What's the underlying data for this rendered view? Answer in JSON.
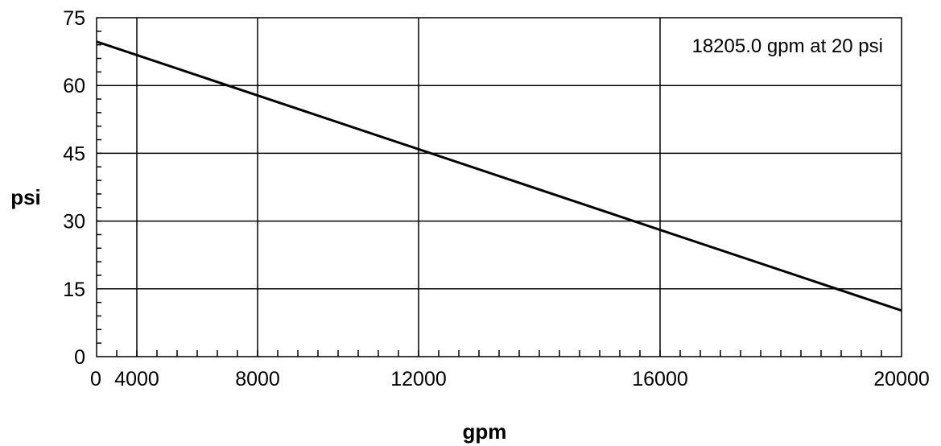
{
  "chart_data": {
    "type": "line",
    "xlabel": "gpm",
    "ylabel": "psi",
    "xlim": [
      0,
      20000
    ],
    "ylim": [
      0,
      75
    ],
    "x_tick_labels": [
      {
        "value": 0,
        "label": "0"
      },
      {
        "value": 1000,
        "label": "4000"
      },
      {
        "value": 4000,
        "label": "8000"
      },
      {
        "value": 8000,
        "label": "12000"
      },
      {
        "value": 14000,
        "label": "16000"
      },
      {
        "value": 20000,
        "label": "20000"
      }
    ],
    "y_ticks": [
      0,
      15,
      30,
      45,
      60,
      75
    ],
    "x_gridlines": [
      1000,
      4000,
      8000,
      14000
    ],
    "grid": true,
    "series": [
      {
        "x": [
          0,
          20000
        ],
        "y": [
          69.7,
          10.2
        ],
        "color": "#000000"
      }
    ],
    "annotation": "18205.0 gpm at 20 psi"
  }
}
